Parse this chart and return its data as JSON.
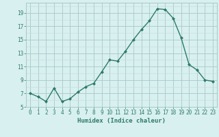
{
  "x": [
    0,
    1,
    2,
    3,
    4,
    5,
    6,
    7,
    8,
    9,
    10,
    11,
    12,
    13,
    14,
    15,
    16,
    17,
    18,
    19,
    20,
    21,
    22,
    23
  ],
  "y": [
    7.0,
    6.5,
    5.8,
    7.8,
    5.8,
    6.2,
    7.2,
    8.0,
    8.5,
    10.2,
    12.0,
    11.8,
    13.3,
    15.0,
    16.5,
    17.8,
    19.6,
    19.5,
    18.2,
    15.3,
    11.3,
    10.5,
    9.0,
    8.8
  ],
  "line_color": "#2d7a6a",
  "marker_color": "#2d7a6a",
  "bg_color": "#d8f0ef",
  "grid_major_color": "#a8c8c8",
  "grid_minor_color": "#c0dcdc",
  "xlabel": "Humidex (Indice chaleur)",
  "ylim": [
    5,
    20.5
  ],
  "xlim": [
    -0.5,
    23.5
  ],
  "yticks": [
    5,
    7,
    9,
    11,
    13,
    15,
    17,
    19
  ],
  "xticks": [
    0,
    1,
    2,
    3,
    4,
    5,
    6,
    7,
    8,
    9,
    10,
    11,
    12,
    13,
    14,
    15,
    16,
    17,
    18,
    19,
    20,
    21,
    22,
    23
  ]
}
